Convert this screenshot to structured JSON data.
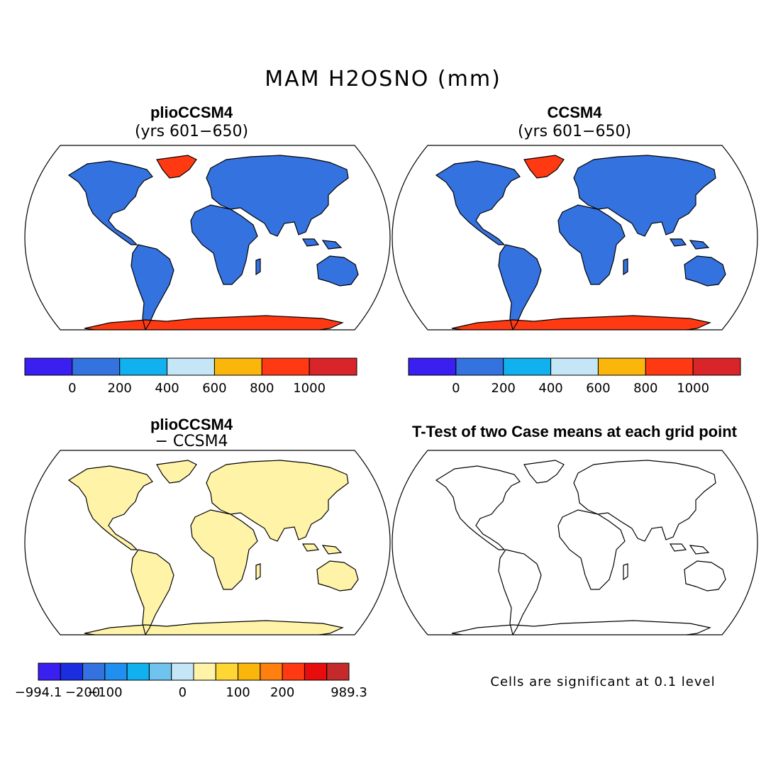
{
  "figure": {
    "title": "MAM H2OSNO (mm)",
    "note": "Cells are significant at 0.1 level"
  },
  "panels": [
    {
      "title": "plioCCSM4",
      "subtitle": "(yrs 601−650)"
    },
    {
      "title": "CCSM4",
      "subtitle": "(yrs 601−650)"
    },
    {
      "title": "plioCCSM4",
      "subtitle": "− CCSM4"
    },
    {
      "title": "T-Test of two Case means at each grid point",
      "subtitle": ""
    }
  ],
  "chart_data": [
    {
      "type": "heatmap",
      "title": "plioCCSM4 (yrs 601−650)",
      "colorbar": {
        "ticks": [
          "0",
          "200",
          "400",
          "600",
          "800",
          "1000"
        ],
        "colors": [
          "#3a1ff0",
          "#3472e0",
          "#11b0ef",
          "#c4e6f6",
          "#fbb60c",
          "#ff3a12",
          "#d9242a"
        ]
      }
    },
    {
      "type": "heatmap",
      "title": "CCSM4 (yrs 601−650)",
      "colorbar": {
        "ticks": [
          "0",
          "200",
          "400",
          "600",
          "800",
          "1000"
        ],
        "colors": [
          "#3a1ff0",
          "#3472e0",
          "#11b0ef",
          "#c4e6f6",
          "#fbb60c",
          "#ff3a12",
          "#d9242a"
        ]
      }
    },
    {
      "type": "heatmap",
      "title": "plioCCSM4 − CCSM4",
      "colorbar": {
        "ticks": [
          "−994.1",
          "−200",
          "−100",
          "0",
          "100",
          "200",
          "989.3"
        ],
        "colors": [
          "#3a1ff0",
          "#1a2ee0",
          "#3472e0",
          "#1f8ff0",
          "#11b0ef",
          "#6ec3ef",
          "#c4e6f6",
          "#fff3a8",
          "#ffd633",
          "#fbb60c",
          "#ff7f0f",
          "#ff3a12",
          "#e80d0d",
          "#c42a2a"
        ]
      }
    },
    {
      "type": "heatmap",
      "title": "T-Test of two Case means at each grid point",
      "legend": "Cells are significant at 0.1 level",
      "colors": [
        "#ee1111"
      ]
    }
  ]
}
